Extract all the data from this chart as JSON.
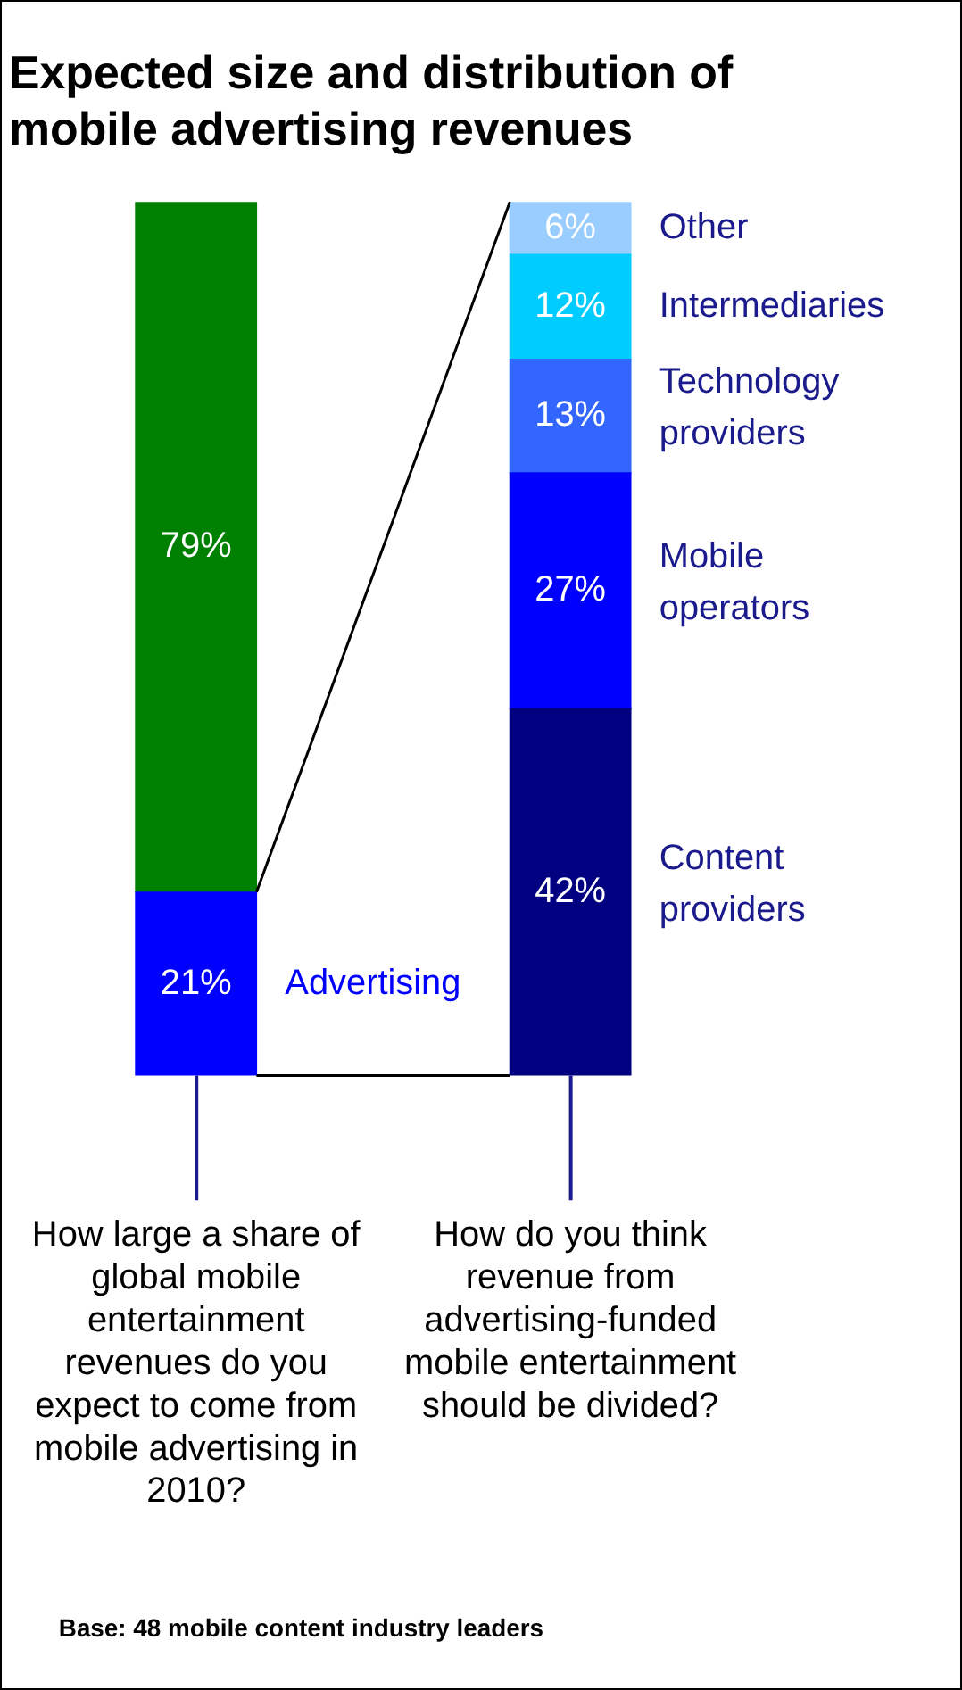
{
  "chart_data": {
    "type": "bar",
    "title": "Expected size and distribution of mobile advertising revenues",
    "categories": [
      "How large a share of global mobile entertainment revenues do you expect to come from mobile advertising in 2010?",
      "How do you think revenue from advertising-funded mobile entertainment should be divided?"
    ],
    "stacked": true,
    "series": [
      {
        "name": "Advertising",
        "color": "#0000ff",
        "values": [
          21,
          null
        ],
        "value_labels": [
          "21%",
          null
        ]
      },
      {
        "color": "#008000",
        "values": [
          79,
          null
        ],
        "value_labels": [
          "79%",
          null
        ]
      },
      {
        "name": "Content providers",
        "color": "#000080",
        "values": [
          null,
          42
        ],
        "value_labels": [
          null,
          "42%"
        ]
      },
      {
        "name": "Mobile operators",
        "color": "#0000ff",
        "values": [
          null,
          27
        ],
        "value_labels": [
          null,
          "27%"
        ]
      },
      {
        "name": "Technology providers",
        "color": "#3366ff",
        "values": [
          null,
          13
        ],
        "value_labels": [
          null,
          "13%"
        ]
      },
      {
        "name": "Intermediaries",
        "color": "#00ccff",
        "values": [
          null,
          12
        ],
        "value_labels": [
          null,
          "12%"
        ]
      },
      {
        "name": "Other",
        "color": "#99ccff",
        "values": [
          null,
          6
        ],
        "value_labels": [
          null,
          "6%"
        ]
      }
    ],
    "legend": false,
    "grid": false,
    "annotations": [
      "Base: 48 mobile content industry leaders"
    ]
  }
}
